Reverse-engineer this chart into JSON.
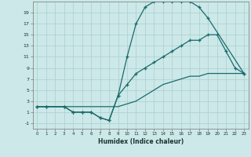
{
  "xlabel": "Humidex (Indice chaleur)",
  "bg_color": "#cce8e8",
  "grid_color": "#aacfcf",
  "line_color": "#1a6b6b",
  "xlim": [
    -0.5,
    23.5
  ],
  "ylim": [
    -2,
    21
  ],
  "xticks": [
    0,
    1,
    2,
    3,
    4,
    5,
    6,
    7,
    8,
    9,
    10,
    11,
    12,
    13,
    14,
    15,
    16,
    17,
    18,
    19,
    20,
    21,
    22,
    23
  ],
  "yticks": [
    -1,
    1,
    3,
    5,
    7,
    9,
    11,
    13,
    15,
    17,
    19
  ],
  "curve1_x": [
    0,
    1,
    3,
    4,
    5,
    6,
    7,
    8,
    9,
    10,
    11,
    12,
    13,
    14,
    15,
    16,
    17,
    18,
    19,
    23
  ],
  "curve1_y": [
    2,
    2,
    2,
    1,
    1,
    1,
    0,
    -0.5,
    4,
    11,
    17,
    20,
    21,
    21,
    21,
    21,
    21,
    20,
    18,
    8
  ],
  "curve2_x": [
    0,
    1,
    3,
    4,
    5,
    6,
    7,
    8,
    9,
    10,
    11,
    12,
    13,
    14,
    15,
    16,
    17,
    18,
    19,
    20,
    21,
    22,
    23
  ],
  "curve2_y": [
    2,
    2,
    2,
    1,
    1,
    1,
    0,
    -0.5,
    4,
    6,
    8,
    9,
    10,
    11,
    12,
    13,
    14,
    14,
    15,
    15,
    12,
    9,
    8
  ],
  "curve3_x": [
    0,
    1,
    3,
    9,
    10,
    11,
    12,
    13,
    14,
    15,
    16,
    17,
    18,
    19,
    20,
    21,
    22,
    23
  ],
  "curve3_y": [
    2,
    2,
    2,
    2,
    2.5,
    3,
    4,
    5,
    6,
    6.5,
    7,
    7.5,
    7.5,
    8,
    8,
    8,
    8,
    8
  ]
}
